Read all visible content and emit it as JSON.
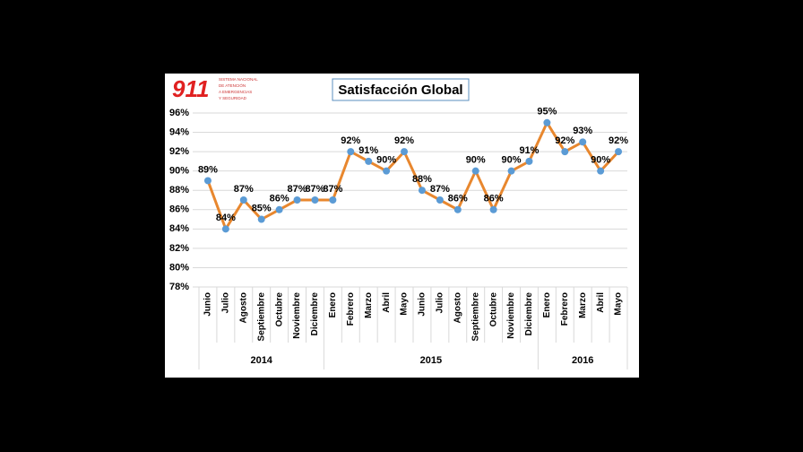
{
  "logo": {
    "mark": "911",
    "lines": [
      "SISTEMA NACIONAL",
      "DE ATENCIÓN",
      "A EMERGENCIAS",
      "Y SEGURIDAD"
    ]
  },
  "chart_data": {
    "type": "line",
    "title": "Satisfacción Global",
    "groups": [
      {
        "name": "2014",
        "categories": [
          "Junio",
          "Julio",
          "Agosto",
          "Septiembre",
          "Octubre",
          "Noviembre",
          "Diciembre"
        ]
      },
      {
        "name": "2015",
        "categories": [
          "Enero",
          "Febrero",
          "Marzo",
          "Abril",
          "Mayo",
          "Junio",
          "Julio",
          "Agosto",
          "Septiembre",
          "Octubre",
          "Noviembre",
          "Diciembre"
        ]
      },
      {
        "name": "2016",
        "categories": [
          "Enero",
          "Febrero",
          "Marzo",
          "Abril",
          "Mayo"
        ]
      }
    ],
    "series": [
      {
        "color": "#e8872e",
        "marker_color": "#5b9bd5",
        "values": [
          89,
          84,
          87,
          85,
          86,
          87,
          87,
          87,
          92,
          91,
          90,
          92,
          88,
          87,
          86,
          90,
          86,
          90,
          91,
          95,
          92,
          93,
          90,
          92
        ],
        "value_labels": [
          "89%",
          "84%",
          "87%",
          "85%",
          "86%",
          "87%",
          "87%",
          "87%",
          "92%",
          "91%",
          "90%",
          "92%",
          "88%",
          "87%",
          "86%",
          "90%",
          "86%",
          "90%",
          "91%",
          "95%",
          "92%",
          "93%",
          "90%",
          "92%"
        ]
      }
    ],
    "ylim": [
      78,
      96
    ],
    "yticks": [
      {
        "value": 78,
        "label": "78%"
      },
      {
        "value": 80,
        "label": "80%"
      },
      {
        "value": 82,
        "label": "82%"
      },
      {
        "value": 84,
        "label": "84%"
      },
      {
        "value": 86,
        "label": "86%"
      },
      {
        "value": 88,
        "label": "88%"
      },
      {
        "value": 90,
        "label": "90%"
      },
      {
        "value": 92,
        "label": "92%"
      },
      {
        "value": 94,
        "label": "94%"
      },
      {
        "value": 96,
        "label": "96%"
      }
    ],
    "grid": true
  }
}
